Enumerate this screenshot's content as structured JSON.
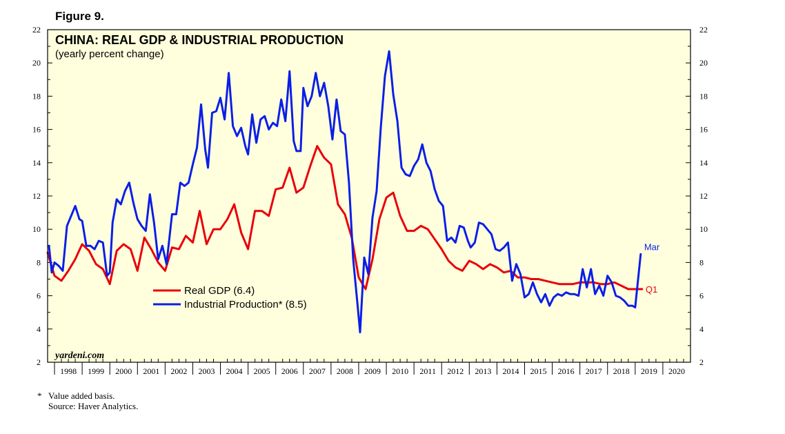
{
  "figure_label": "Figure 9.",
  "footnotes": {
    "marker": "*",
    "note": "Value added basis.",
    "source": "Source: Haver Analytics."
  },
  "watermark": "yardeni.com",
  "colors": {
    "gdp": "#e8000b",
    "ip": "#0a1ee8",
    "plot_bg": "#ffffdd"
  },
  "chart_data": {
    "type": "line",
    "title": "CHINA: REAL GDP & INDUSTRIAL PRODUCTION",
    "subtitle": "(yearly percent change)",
    "ylim": [
      2,
      22
    ],
    "y_ticks": [
      2,
      4,
      6,
      8,
      10,
      12,
      14,
      16,
      18,
      20,
      22
    ],
    "x_range": [
      1997.75,
      2021.0
    ],
    "x_tick_labels": [
      "1998",
      "1999",
      "2000",
      "2001",
      "2002",
      "2003",
      "2004",
      "2005",
      "2006",
      "2007",
      "2008",
      "2009",
      "2010",
      "2011",
      "2012",
      "2013",
      "2014",
      "2015",
      "2016",
      "2017",
      "2018",
      "2019",
      "2020"
    ],
    "grid": false,
    "legend_placement": "center-left",
    "series": [
      {
        "name": "Real GDP (6.4)",
        "key": "gdp",
        "end_label": "Q1",
        "points": [
          [
            1997.75,
            8.6
          ],
          [
            1998.0,
            7.2
          ],
          [
            1998.25,
            6.9
          ],
          [
            1998.5,
            7.5
          ],
          [
            1998.75,
            8.2
          ],
          [
            1999.0,
            9.1
          ],
          [
            1999.25,
            8.7
          ],
          [
            1999.5,
            7.9
          ],
          [
            1999.75,
            7.6
          ],
          [
            2000.0,
            6.7
          ],
          [
            2000.25,
            8.7
          ],
          [
            2000.5,
            9.1
          ],
          [
            2000.75,
            8.8
          ],
          [
            2001.0,
            7.5
          ],
          [
            2001.25,
            9.5
          ],
          [
            2001.5,
            8.8
          ],
          [
            2001.75,
            8.0
          ],
          [
            2002.0,
            7.5
          ],
          [
            2002.25,
            8.9
          ],
          [
            2002.5,
            8.8
          ],
          [
            2002.75,
            9.6
          ],
          [
            2003.0,
            9.2
          ],
          [
            2003.25,
            11.1
          ],
          [
            2003.5,
            9.1
          ],
          [
            2003.75,
            10.0
          ],
          [
            2004.0,
            10.0
          ],
          [
            2004.25,
            10.6
          ],
          [
            2004.5,
            11.5
          ],
          [
            2004.75,
            9.8
          ],
          [
            2005.0,
            8.8
          ],
          [
            2005.25,
            11.1
          ],
          [
            2005.5,
            11.1
          ],
          [
            2005.75,
            10.8
          ],
          [
            2006.0,
            12.4
          ],
          [
            2006.25,
            12.5
          ],
          [
            2006.5,
            13.7
          ],
          [
            2006.75,
            12.2
          ],
          [
            2007.0,
            12.5
          ],
          [
            2007.25,
            13.8
          ],
          [
            2007.5,
            15.0
          ],
          [
            2007.75,
            14.3
          ],
          [
            2008.0,
            13.9
          ],
          [
            2008.25,
            11.5
          ],
          [
            2008.5,
            10.9
          ],
          [
            2008.75,
            9.5
          ],
          [
            2009.0,
            7.1
          ],
          [
            2009.25,
            6.4
          ],
          [
            2009.5,
            8.2
          ],
          [
            2009.75,
            10.6
          ],
          [
            2010.0,
            11.9
          ],
          [
            2010.25,
            12.2
          ],
          [
            2010.5,
            10.8
          ],
          [
            2010.75,
            9.9
          ],
          [
            2011.0,
            9.9
          ],
          [
            2011.25,
            10.2
          ],
          [
            2011.5,
            10.0
          ],
          [
            2011.75,
            9.4
          ],
          [
            2012.0,
            8.8
          ],
          [
            2012.25,
            8.1
          ],
          [
            2012.5,
            7.7
          ],
          [
            2012.75,
            7.5
          ],
          [
            2013.0,
            8.1
          ],
          [
            2013.25,
            7.9
          ],
          [
            2013.5,
            7.6
          ],
          [
            2013.75,
            7.9
          ],
          [
            2014.0,
            7.7
          ],
          [
            2014.25,
            7.4
          ],
          [
            2014.5,
            7.5
          ],
          [
            2014.75,
            7.1
          ],
          [
            2015.0,
            7.1
          ],
          [
            2015.25,
            7.0
          ],
          [
            2015.5,
            7.0
          ],
          [
            2015.75,
            6.9
          ],
          [
            2016.0,
            6.8
          ],
          [
            2016.25,
            6.7
          ],
          [
            2016.5,
            6.7
          ],
          [
            2016.75,
            6.7
          ],
          [
            2017.0,
            6.8
          ],
          [
            2017.25,
            6.8
          ],
          [
            2017.5,
            6.8
          ],
          [
            2017.75,
            6.7
          ],
          [
            2018.0,
            6.7
          ],
          [
            2018.25,
            6.8
          ],
          [
            2018.5,
            6.6
          ],
          [
            2018.75,
            6.4
          ],
          [
            2019.0,
            6.4
          ],
          [
            2019.25,
            6.4
          ]
        ]
      },
      {
        "name": "Industrial Production* (8.5)",
        "key": "ip",
        "end_label": "Mar",
        "points": [
          [
            1997.8,
            9.0
          ],
          [
            1997.9,
            7.4
          ],
          [
            1998.0,
            8.0
          ],
          [
            1998.15,
            7.8
          ],
          [
            1998.3,
            7.5
          ],
          [
            1998.45,
            10.2
          ],
          [
            1998.6,
            10.8
          ],
          [
            1998.75,
            11.4
          ],
          [
            1998.9,
            10.6
          ],
          [
            1999.0,
            10.5
          ],
          [
            1999.15,
            9.0
          ],
          [
            1999.3,
            9.0
          ],
          [
            1999.45,
            8.8
          ],
          [
            1999.6,
            9.3
          ],
          [
            1999.75,
            9.2
          ],
          [
            1999.9,
            7.2
          ],
          [
            2000.0,
            7.4
          ],
          [
            2000.1,
            10.4
          ],
          [
            2000.25,
            11.8
          ],
          [
            2000.4,
            11.5
          ],
          [
            2000.55,
            12.3
          ],
          [
            2000.7,
            12.8
          ],
          [
            2000.85,
            11.6
          ],
          [
            2001.0,
            10.6
          ],
          [
            2001.15,
            10.2
          ],
          [
            2001.3,
            9.9
          ],
          [
            2001.45,
            12.1
          ],
          [
            2001.6,
            10.4
          ],
          [
            2001.75,
            8.2
          ],
          [
            2001.9,
            9.0
          ],
          [
            2002.05,
            7.9
          ],
          [
            2002.25,
            10.9
          ],
          [
            2002.4,
            10.9
          ],
          [
            2002.55,
            12.8
          ],
          [
            2002.7,
            12.6
          ],
          [
            2002.85,
            12.8
          ],
          [
            2003.0,
            13.9
          ],
          [
            2003.15,
            14.9
          ],
          [
            2003.3,
            17.5
          ],
          [
            2003.45,
            14.8
          ],
          [
            2003.55,
            13.7
          ],
          [
            2003.7,
            17.0
          ],
          [
            2003.85,
            17.1
          ],
          [
            2004.0,
            17.9
          ],
          [
            2004.15,
            16.6
          ],
          [
            2004.3,
            19.4
          ],
          [
            2004.45,
            16.2
          ],
          [
            2004.6,
            15.6
          ],
          [
            2004.75,
            16.1
          ],
          [
            2004.9,
            15.0
          ],
          [
            2005.0,
            14.5
          ],
          [
            2005.15,
            16.9
          ],
          [
            2005.3,
            15.2
          ],
          [
            2005.45,
            16.6
          ],
          [
            2005.6,
            16.8
          ],
          [
            2005.75,
            16.0
          ],
          [
            2005.9,
            16.4
          ],
          [
            2006.05,
            16.2
          ],
          [
            2006.2,
            17.8
          ],
          [
            2006.35,
            16.5
          ],
          [
            2006.5,
            19.5
          ],
          [
            2006.65,
            15.3
          ],
          [
            2006.75,
            14.7
          ],
          [
            2006.9,
            14.7
          ],
          [
            2007.0,
            18.5
          ],
          [
            2007.15,
            17.4
          ],
          [
            2007.3,
            18.0
          ],
          [
            2007.45,
            19.4
          ],
          [
            2007.6,
            18.0
          ],
          [
            2007.75,
            18.8
          ],
          [
            2007.9,
            17.4
          ],
          [
            2008.05,
            15.4
          ],
          [
            2008.2,
            17.8
          ],
          [
            2008.35,
            15.9
          ],
          [
            2008.5,
            15.7
          ],
          [
            2008.65,
            12.8
          ],
          [
            2008.8,
            8.2
          ],
          [
            2008.95,
            5.6
          ],
          [
            2009.05,
            3.8
          ],
          [
            2009.2,
            8.3
          ],
          [
            2009.35,
            7.3
          ],
          [
            2009.5,
            10.7
          ],
          [
            2009.65,
            12.3
          ],
          [
            2009.8,
            16.1
          ],
          [
            2009.95,
            19.2
          ],
          [
            2010.1,
            20.7
          ],
          [
            2010.25,
            18.1
          ],
          [
            2010.4,
            16.5
          ],
          [
            2010.55,
            13.7
          ],
          [
            2010.7,
            13.3
          ],
          [
            2010.85,
            13.2
          ],
          [
            2011.0,
            13.8
          ],
          [
            2011.15,
            14.2
          ],
          [
            2011.3,
            15.1
          ],
          [
            2011.45,
            14.0
          ],
          [
            2011.6,
            13.5
          ],
          [
            2011.75,
            12.4
          ],
          [
            2011.9,
            11.7
          ],
          [
            2012.05,
            11.4
          ],
          [
            2012.2,
            9.3
          ],
          [
            2012.35,
            9.5
          ],
          [
            2012.5,
            9.2
          ],
          [
            2012.65,
            10.2
          ],
          [
            2012.8,
            10.1
          ],
          [
            2012.95,
            9.3
          ],
          [
            2013.05,
            8.9
          ],
          [
            2013.2,
            9.2
          ],
          [
            2013.35,
            10.4
          ],
          [
            2013.5,
            10.3
          ],
          [
            2013.65,
            10.0
          ],
          [
            2013.8,
            9.7
          ],
          [
            2013.95,
            8.8
          ],
          [
            2014.1,
            8.7
          ],
          [
            2014.25,
            8.9
          ],
          [
            2014.4,
            9.2
          ],
          [
            2014.55,
            6.9
          ],
          [
            2014.7,
            7.9
          ],
          [
            2014.85,
            7.3
          ],
          [
            2015.0,
            5.9
          ],
          [
            2015.15,
            6.1
          ],
          [
            2015.3,
            6.8
          ],
          [
            2015.45,
            6.1
          ],
          [
            2015.6,
            5.6
          ],
          [
            2015.75,
            6.1
          ],
          [
            2015.9,
            5.4
          ],
          [
            2016.05,
            5.9
          ],
          [
            2016.2,
            6.1
          ],
          [
            2016.35,
            6.0
          ],
          [
            2016.5,
            6.2
          ],
          [
            2016.65,
            6.1
          ],
          [
            2016.8,
            6.1
          ],
          [
            2016.95,
            6.0
          ],
          [
            2017.1,
            7.6
          ],
          [
            2017.25,
            6.5
          ],
          [
            2017.4,
            7.6
          ],
          [
            2017.55,
            6.1
          ],
          [
            2017.7,
            6.6
          ],
          [
            2017.85,
            6.0
          ],
          [
            2018.0,
            7.2
          ],
          [
            2018.15,
            6.8
          ],
          [
            2018.3,
            6.0
          ],
          [
            2018.45,
            5.9
          ],
          [
            2018.6,
            5.7
          ],
          [
            2018.75,
            5.4
          ],
          [
            2018.9,
            5.4
          ],
          [
            2019.0,
            5.3
          ],
          [
            2019.2,
            8.5
          ]
        ]
      }
    ]
  }
}
